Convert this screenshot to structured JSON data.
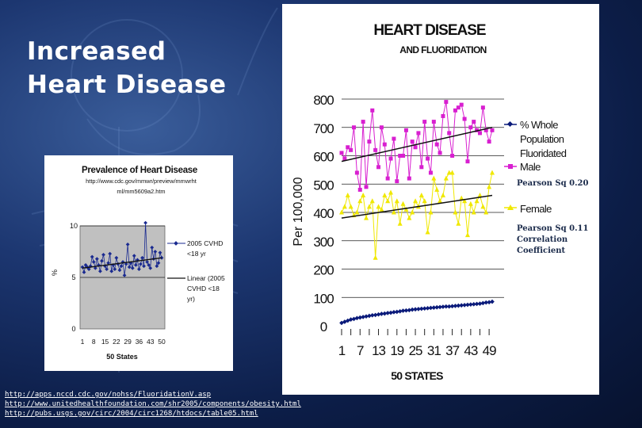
{
  "slide": {
    "title_line1": "Increased",
    "title_line2": "Heart Disease",
    "sources": [
      "http://apps.nccd.cdc.gov/nohss/FluoridationV.asp",
      "http://www.unitedhealthfoundation.com/shr2005/components/obesity.html",
      "http://pubs.usgs.gov/circ/2004/circ1268/htdocs/table05.html"
    ]
  },
  "colors": {
    "male": "#d81fd0",
    "female": "#f0e800",
    "fluoridated": "#0a1a7a",
    "trend": "#111111",
    "grey_plot": "#c0c0c0",
    "small_series": "#1a2a90"
  },
  "chart_data": [
    {
      "type": "line",
      "title": "HEART DISEASE",
      "subtitle": "AND FLUORIDATION",
      "ylabel": "Per 100,000",
      "xlabel": "50 STATES",
      "ylim": [
        0,
        800
      ],
      "yticks": [
        "0",
        "100",
        "200",
        "300",
        "400",
        "500",
        "600",
        "700",
        "800"
      ],
      "xticks": [
        "1",
        "7",
        "13",
        "19",
        "25",
        "31",
        "37",
        "43",
        "49"
      ],
      "x": [
        1,
        2,
        3,
        4,
        5,
        6,
        7,
        8,
        9,
        10,
        11,
        12,
        13,
        14,
        15,
        16,
        17,
        18,
        19,
        20,
        21,
        22,
        23,
        24,
        25,
        26,
        27,
        28,
        29,
        30,
        31,
        32,
        33,
        34,
        35,
        36,
        37,
        38,
        39,
        40,
        41,
        42,
        43,
        44,
        45,
        46,
        47,
        48,
        49,
        50
      ],
      "grid": true,
      "legend": "right",
      "series": [
        {
          "name": "% Whole Population Fluoridated",
          "marker": "diamond",
          "values": [
            10,
            14,
            18,
            22,
            24,
            27,
            29,
            31,
            33,
            35,
            37,
            38,
            40,
            42,
            43,
            45,
            46,
            48,
            49,
            51,
            53,
            54,
            55,
            57,
            58,
            59,
            60,
            61,
            62,
            63,
            64,
            65,
            66,
            67,
            68,
            68,
            69,
            70,
            71,
            72,
            73,
            74,
            75,
            76,
            77,
            78,
            80,
            82,
            83,
            85
          ]
        },
        {
          "name": "Male",
          "marker": "square",
          "values": [
            610,
            590,
            630,
            620,
            700,
            540,
            480,
            720,
            490,
            650,
            760,
            620,
            560,
            700,
            640,
            520,
            590,
            660,
            510,
            600,
            600,
            690,
            520,
            650,
            630,
            680,
            560,
            720,
            590,
            540,
            720,
            640,
            610,
            740,
            790,
            680,
            600,
            760,
            770,
            780,
            730,
            580,
            700,
            720,
            690,
            680,
            770,
            690,
            650,
            690
          ]
        },
        {
          "name": "Female",
          "marker": "triangle",
          "values": [
            400,
            420,
            460,
            420,
            390,
            400,
            440,
            460,
            380,
            420,
            440,
            240,
            420,
            410,
            460,
            440,
            470,
            400,
            440,
            360,
            430,
            410,
            380,
            400,
            440,
            420,
            460,
            440,
            330,
            400,
            520,
            480,
            440,
            460,
            520,
            540,
            540,
            400,
            360,
            450,
            440,
            320,
            430,
            400,
            440,
            460,
            420,
            400,
            490,
            540
          ]
        }
      ],
      "trendlines": [
        {
          "series": "Male",
          "start": 580,
          "end": 700
        },
        {
          "series": "Female",
          "start": 380,
          "end": 460
        }
      ],
      "annotations": [
        "Pearson Sq 0.20",
        "Pearson Sq 0.11",
        "Correlation",
        "Coefficient"
      ]
    },
    {
      "type": "line",
      "title": "Prevalence of Heart Disease",
      "subtitle_line1": "http://www.cdc.gov/mmwr/preview/mmwrht",
      "subtitle_line2": "ml/mm5609a2.htm",
      "ylabel": "%",
      "xlabel": "50 States",
      "ylim": [
        0,
        10
      ],
      "yticks": [
        "0",
        "5",
        "10"
      ],
      "xticks": [
        "1",
        "8",
        "15",
        "22",
        "29",
        "36",
        "43",
        "50"
      ],
      "grid": true,
      "legend": "right",
      "series": [
        {
          "name": "2005 CVHD <18 yr",
          "values": [
            6,
            5.5,
            6.2,
            6,
            5.8,
            6.1,
            7,
            6.5,
            5.9,
            6.8,
            6.2,
            5.6,
            6.6,
            7.2,
            6.1,
            5.8,
            6.4,
            7.3,
            5.6,
            6.2,
            5.8,
            6.9,
            6.3,
            5.7,
            6.1,
            6.5,
            5.2,
            6.3,
            8.2,
            6,
            6.4,
            5.9,
            7.1,
            6.2,
            6.7,
            5.8,
            6.3,
            6.9,
            6.1,
            10.3,
            6.5,
            6.2,
            5.9,
            7.9,
            6.8,
            7.5,
            6.1,
            6.4,
            7.4,
            6.9
          ]
        },
        {
          "name": "Linear (2005 CVHD <18 yr)",
          "values": [
            5.9,
            6.9
          ]
        }
      ]
    }
  ]
}
